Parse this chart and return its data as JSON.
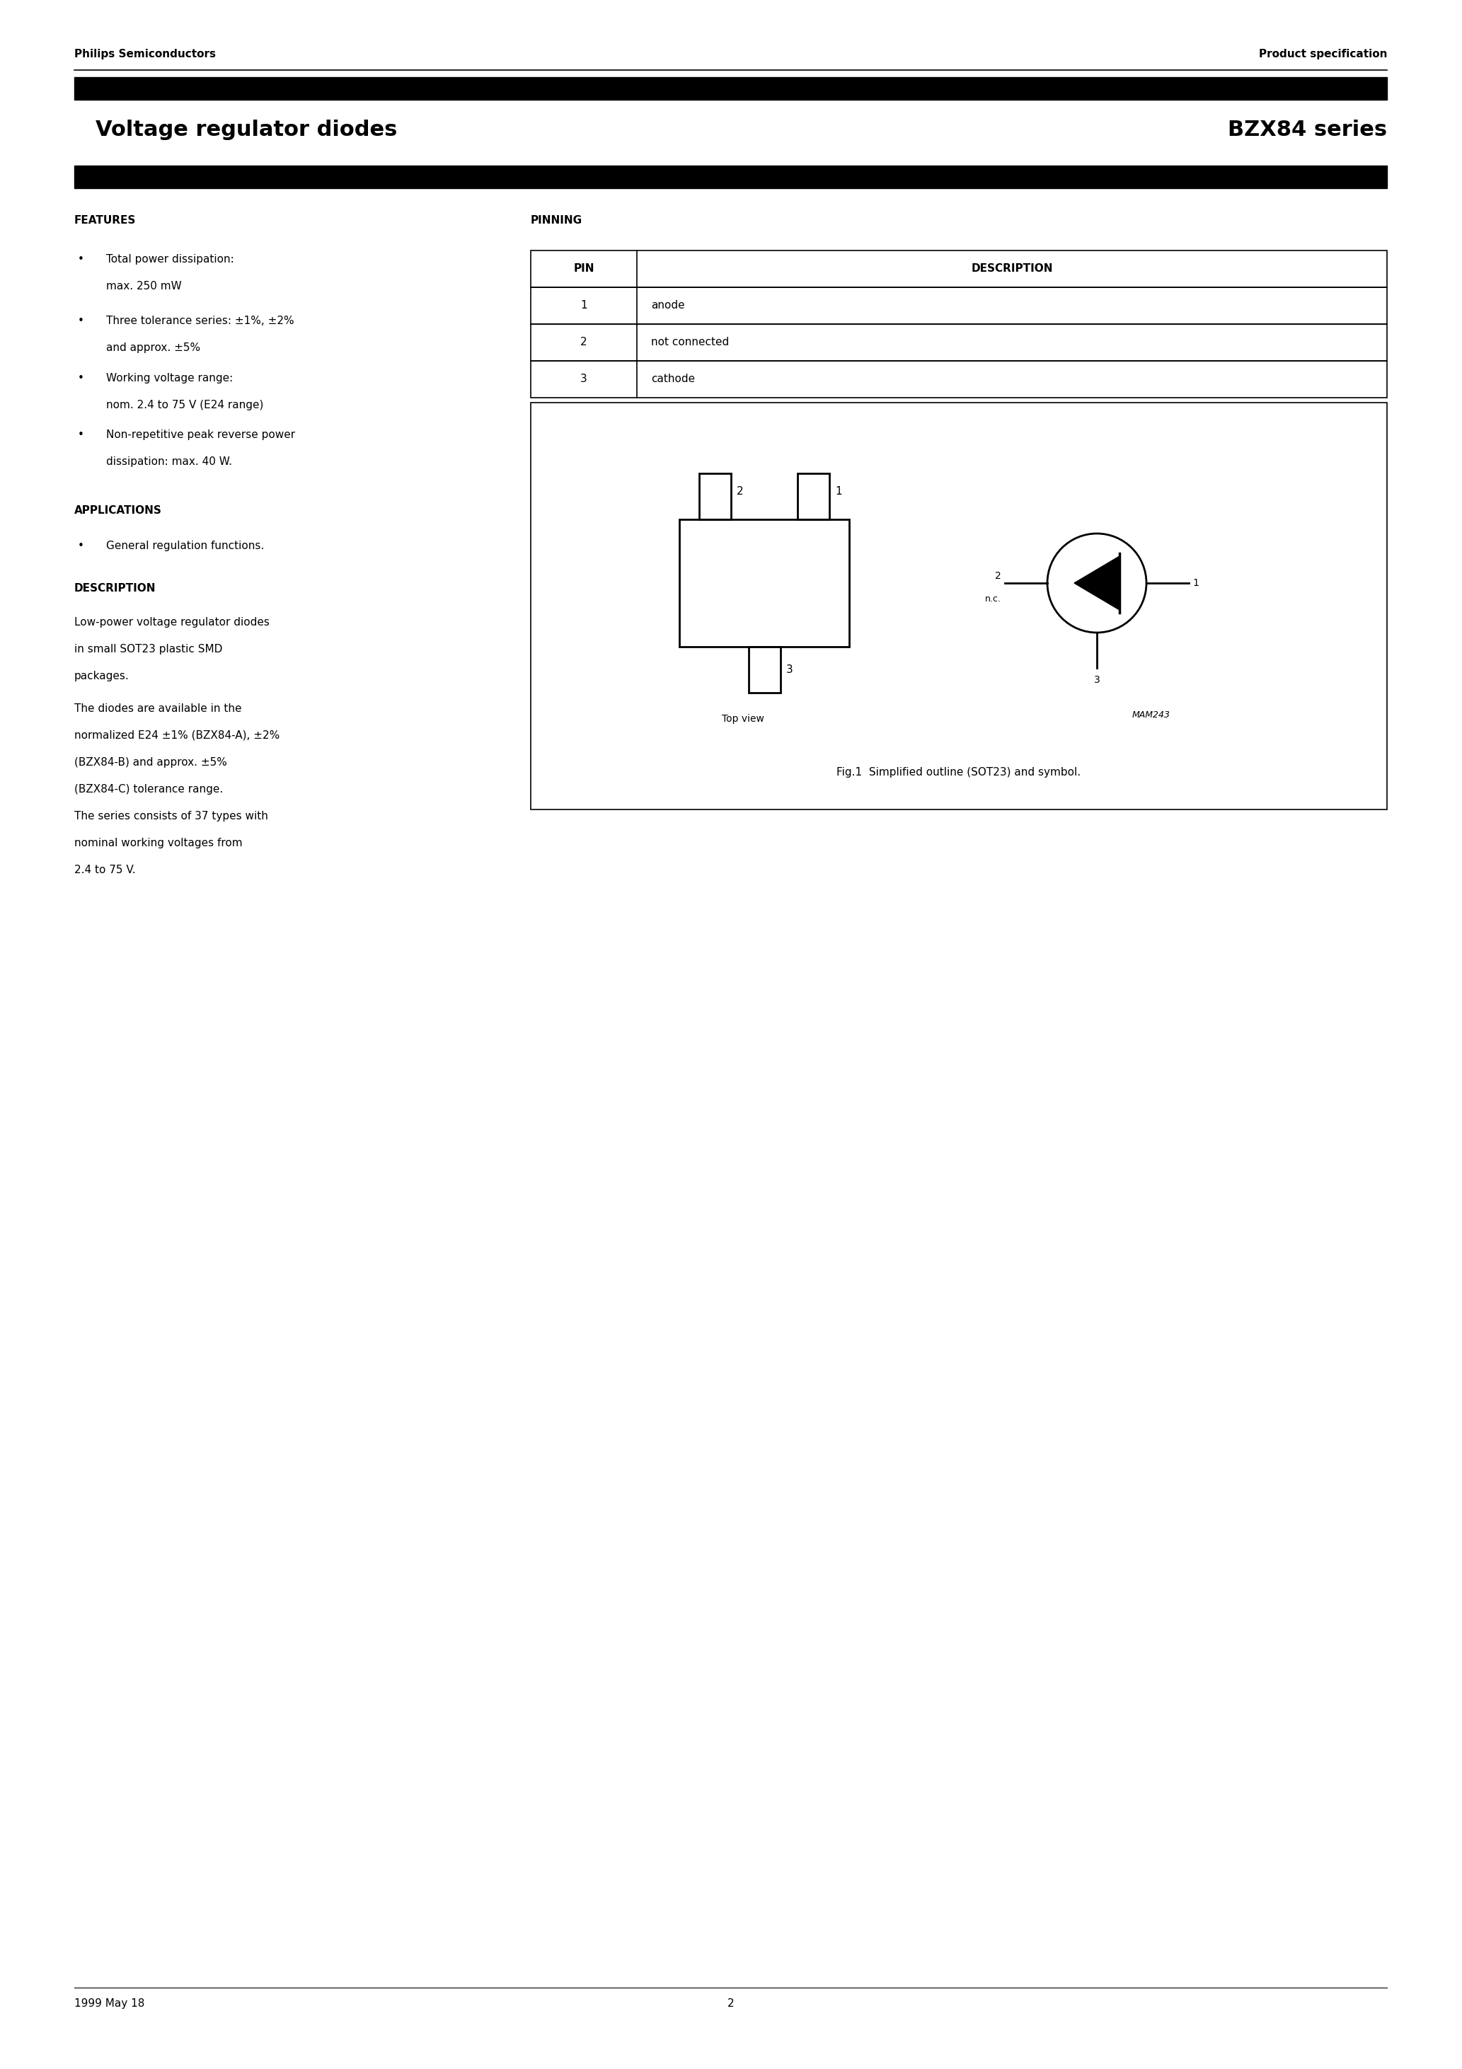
{
  "page_title_left": "Voltage regulator diodes",
  "page_title_right": "BZX84 series",
  "header_left": "Philips Semiconductors",
  "header_right": "Product specification",
  "features_title": "FEATURES",
  "features_line1": "Total power dissipation:",
  "features_line1b": "max. 250 mW",
  "features_line2": "Three tolerance series: ±1%, ±2%",
  "features_line2b": "and approx. ±5%",
  "features_line3": "Working voltage range:",
  "features_line3b": "nom. 2.4 to 75 V (E24 range)",
  "features_line4": "Non-repetitive peak reverse power",
  "features_line4b": "dissipation: max. 40 W.",
  "applications_title": "APPLICATIONS",
  "applications_line1": "General regulation functions.",
  "description_title": "DESCRIPTION",
  "desc1_line1": "Low-power voltage regulator diodes",
  "desc1_line2": "in small SOT23 plastic SMD",
  "desc1_line3": "packages.",
  "desc2_line1": "The diodes are available in the",
  "desc2_line2": "normalized E24 ±1% (BZX84-A), ±2%",
  "desc2_line3": "(BZX84-B) and approx. ±5%",
  "desc2_line4": "(BZX84-C) tolerance range.",
  "desc2_line5": "The series consists of 37 types with",
  "desc2_line6": "nominal working voltages from",
  "desc2_line7": "2.4 to 75 V.",
  "pinning_title": "PINNING",
  "pin_header_1": "PIN",
  "pin_header_2": "DESCRIPTION",
  "pin_rows": [
    [
      "1",
      "anode"
    ],
    [
      "2",
      "not connected"
    ],
    [
      "3",
      "cathode"
    ]
  ],
  "fig_caption": "Fig.1  Simplified outline (SOT23) and symbol.",
  "mam_label": "MAM243",
  "top_view_label": "Top view",
  "footer_left": "1999 May 18",
  "footer_center": "2",
  "bg": "#ffffff",
  "black": "#000000"
}
